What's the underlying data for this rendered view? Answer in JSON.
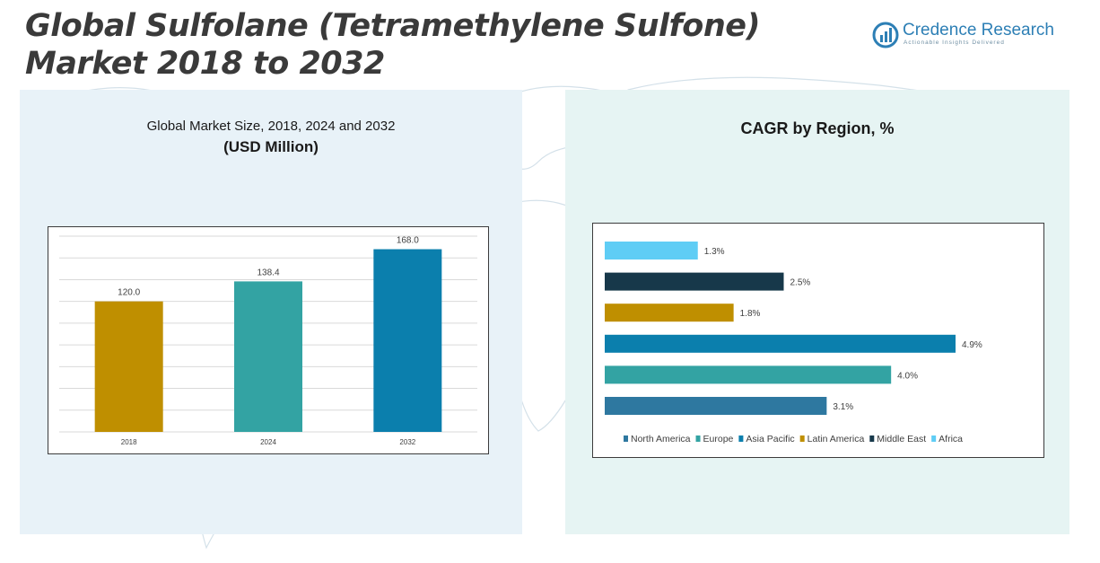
{
  "title": "Global Sulfolane (Tetramethylene Sulfone) Market 2018 to 2032",
  "logo": {
    "name": "Credence Research",
    "tagline": "Actionable Insights Delivered"
  },
  "left_panel": {
    "subtitle": "Global Market Size, 2018, 2024 and 2032",
    "unit": "(USD Million)"
  },
  "right_panel": {
    "title": "CAGR by Region, %"
  },
  "chart_data": [
    {
      "type": "bar",
      "categories": [
        "2018",
        "2024",
        "2032"
      ],
      "values": [
        120.0,
        138.4,
        168.0
      ],
      "value_labels": [
        "120.0",
        "138.4",
        "168.0"
      ],
      "colors": [
        "#bf8f00",
        "#33a3a3",
        "#0b7fad"
      ],
      "ylim": [
        0,
        180
      ],
      "grid": true,
      "title": "Global Market Size, 2018, 2024 and 2032",
      "ylabel": "(USD Million)"
    },
    {
      "type": "bar",
      "orientation": "horizontal",
      "title": "CAGR by Region, %",
      "series": [
        {
          "name": "North America",
          "value": 3.1,
          "label": "3.1%",
          "color": "#2e78a0"
        },
        {
          "name": "Europe",
          "value": 4.0,
          "label": "4.0%",
          "color": "#33a3a3"
        },
        {
          "name": "Asia Pacific",
          "value": 4.9,
          "label": "4.9%",
          "color": "#0b7fad"
        },
        {
          "name": "Latin America",
          "value": 1.8,
          "label": "1.8%",
          "color": "#bf8f00"
        },
        {
          "name": "Middle East",
          "value": 2.5,
          "label": "2.5%",
          "color": "#17384a"
        },
        {
          "name": "Africa",
          "value": 1.3,
          "label": "1.3%",
          "color": "#5fcdf5"
        }
      ],
      "legend": "bottom"
    }
  ]
}
